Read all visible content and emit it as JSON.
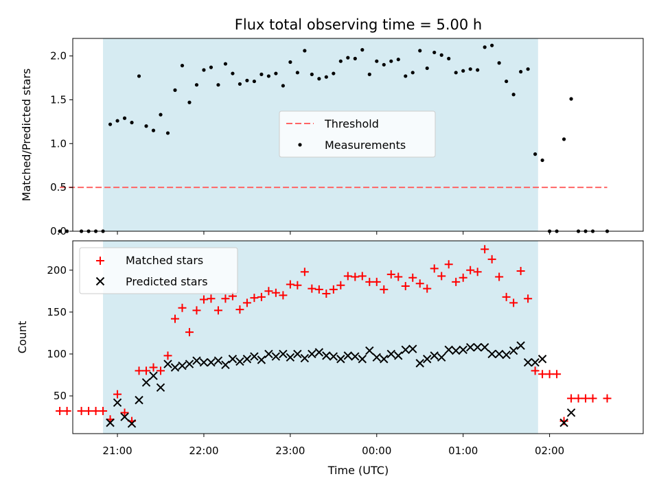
{
  "figure": {
    "title": "Flux total observing time = 5.00 h",
    "background": "#ffffff",
    "shade_color": "#add8e6",
    "x_label": "Time (UTC)",
    "x_tick_labels": [
      "21:00",
      "22:00",
      "23:00",
      "00:00",
      "01:00",
      "02:00"
    ]
  },
  "chart_data": [
    {
      "type": "scatter",
      "panel": "top",
      "ylabel": "Matched/Predicted stars",
      "ylim": [
        0,
        2.2
      ],
      "yticks": [
        0.0,
        0.5,
        1.0,
        1.5,
        2.0
      ],
      "ytick_labels": [
        "0.0",
        "0.5",
        "1.0",
        "1.5",
        "2.0"
      ],
      "xlim": [
        "20:29",
        "03:05"
      ],
      "shaded_span": [
        "20:50",
        "01:52"
      ],
      "legend_position": "center",
      "threshold": {
        "name": "Threshold",
        "value": 0.5,
        "x_range": [
          "20:20",
          "02:40"
        ],
        "color": "#ff6464",
        "style": "dashed"
      },
      "series": [
        {
          "name": "Measurements",
          "color": "#000000",
          "marker": "dot",
          "x": [
            "20:20",
            "20:25",
            "20:35",
            "20:40",
            "20:45",
            "20:50",
            "20:55",
            "21:00",
            "21:05",
            "21:10",
            "21:15",
            "21:20",
            "21:25",
            "21:30",
            "21:35",
            "21:40",
            "21:45",
            "21:50",
            "21:55",
            "22:00",
            "22:05",
            "22:10",
            "22:15",
            "22:20",
            "22:25",
            "22:30",
            "22:35",
            "22:40",
            "22:45",
            "22:50",
            "22:55",
            "23:00",
            "23:05",
            "23:10",
            "23:15",
            "23:20",
            "23:25",
            "23:30",
            "23:35",
            "23:40",
            "23:45",
            "23:50",
            "23:55",
            "00:00",
            "00:05",
            "00:10",
            "00:15",
            "00:20",
            "00:25",
            "00:30",
            "00:35",
            "00:40",
            "00:45",
            "00:50",
            "00:55",
            "01:00",
            "01:05",
            "01:10",
            "01:15",
            "01:20",
            "01:25",
            "01:30",
            "01:35",
            "01:40",
            "01:45",
            "01:50",
            "01:55",
            "02:00",
            "02:05",
            "02:10",
            "02:15",
            "02:20",
            "02:25",
            "02:30",
            "02:40"
          ],
          "y": [
            0.0,
            0.0,
            0.0,
            0.0,
            0.0,
            0.0,
            1.22,
            1.26,
            1.29,
            1.24,
            1.77,
            1.2,
            1.15,
            1.33,
            1.12,
            1.61,
            1.89,
            1.47,
            1.67,
            1.84,
            1.87,
            1.67,
            1.91,
            1.8,
            1.68,
            1.72,
            1.71,
            1.79,
            1.77,
            1.8,
            1.66,
            1.93,
            1.81,
            2.06,
            1.79,
            1.74,
            1.76,
            1.8,
            1.94,
            1.98,
            1.97,
            2.07,
            1.79,
            1.94,
            1.9,
            1.94,
            1.96,
            1.77,
            1.81,
            2.06,
            1.86,
            2.04,
            2.01,
            1.97,
            1.81,
            1.83,
            1.85,
            1.84,
            2.1,
            2.12,
            1.92,
            1.71,
            1.56,
            1.82,
            1.85,
            0.88,
            0.81,
            0.0,
            0.0,
            1.05,
            1.51,
            0.0,
            0.0,
            0.0,
            0.0
          ]
        }
      ]
    },
    {
      "type": "scatter",
      "panel": "bottom",
      "ylabel": "Count",
      "ylim": [
        5,
        235
      ],
      "yticks": [
        50,
        100,
        150,
        200
      ],
      "ytick_labels": [
        "50",
        "100",
        "150",
        "200"
      ],
      "xlim": [
        "20:29",
        "03:05"
      ],
      "shaded_span": [
        "20:50",
        "01:52"
      ],
      "legend_position": "upper left",
      "series": [
        {
          "name": "Matched stars",
          "color": "#ff0000",
          "marker": "plus",
          "x": [
            "20:20",
            "20:25",
            "20:35",
            "20:40",
            "20:45",
            "20:50",
            "20:55",
            "21:00",
            "21:05",
            "21:10",
            "21:15",
            "21:20",
            "21:25",
            "21:30",
            "21:35",
            "21:40",
            "21:45",
            "21:50",
            "21:55",
            "22:00",
            "22:05",
            "22:10",
            "22:15",
            "22:20",
            "22:25",
            "22:30",
            "22:35",
            "22:40",
            "22:45",
            "22:50",
            "22:55",
            "23:00",
            "23:05",
            "23:10",
            "23:15",
            "23:20",
            "23:25",
            "23:30",
            "23:35",
            "23:40",
            "23:45",
            "23:50",
            "23:55",
            "00:00",
            "00:05",
            "00:10",
            "00:15",
            "00:20",
            "00:25",
            "00:30",
            "00:35",
            "00:40",
            "00:45",
            "00:50",
            "00:55",
            "01:00",
            "01:05",
            "01:10",
            "01:15",
            "01:20",
            "01:25",
            "01:30",
            "01:35",
            "01:40",
            "01:45",
            "01:50",
            "01:55",
            "02:00",
            "02:05",
            "02:10",
            "02:15",
            "02:20",
            "02:25",
            "02:30",
            "02:40"
          ],
          "y": [
            32,
            32,
            32,
            32,
            32,
            32,
            22,
            52,
            30,
            20,
            80,
            80,
            84,
            80,
            98,
            142,
            155,
            126,
            152,
            165,
            166,
            152,
            166,
            169,
            153,
            161,
            167,
            168,
            175,
            173,
            170,
            183,
            182,
            198,
            178,
            177,
            172,
            177,
            182,
            193,
            192,
            193,
            186,
            186,
            177,
            195,
            192,
            181,
            191,
            184,
            178,
            202,
            193,
            207,
            186,
            191,
            200,
            198,
            225,
            213,
            192,
            168,
            161,
            199,
            166,
            80,
            76,
            76,
            76,
            20,
            47,
            47,
            47,
            47,
            47
          ]
        },
        {
          "name": "Predicted stars",
          "color": "#000000",
          "marker": "x",
          "x": [
            "20:55",
            "21:00",
            "21:05",
            "21:10",
            "21:15",
            "21:20",
            "21:25",
            "21:30",
            "21:35",
            "21:40",
            "21:45",
            "21:50",
            "21:55",
            "22:00",
            "22:05",
            "22:10",
            "22:15",
            "22:20",
            "22:25",
            "22:30",
            "22:35",
            "22:40",
            "22:45",
            "22:50",
            "22:55",
            "23:00",
            "23:05",
            "23:10",
            "23:15",
            "23:20",
            "23:25",
            "23:30",
            "23:35",
            "23:40",
            "23:45",
            "23:50",
            "23:55",
            "00:00",
            "00:05",
            "00:10",
            "00:15",
            "00:20",
            "00:25",
            "00:30",
            "00:35",
            "00:40",
            "00:45",
            "00:50",
            "00:55",
            "01:00",
            "01:05",
            "01:10",
            "01:15",
            "01:20",
            "01:25",
            "01:30",
            "01:35",
            "01:40",
            "01:45",
            "01:50",
            "01:55",
            "02:10",
            "02:15"
          ],
          "y": [
            18,
            42,
            25,
            17,
            45,
            66,
            74,
            60,
            88,
            84,
            86,
            88,
            92,
            90,
            90,
            92,
            87,
            94,
            91,
            94,
            97,
            93,
            100,
            97,
            100,
            96,
            100,
            95,
            100,
            102,
            98,
            97,
            94,
            98,
            97,
            94,
            104,
            96,
            94,
            100,
            98,
            105,
            106,
            89,
            94,
            98,
            96,
            105,
            104,
            105,
            108,
            108,
            108,
            100,
            100,
            99,
            104,
            110,
            90,
            90,
            94,
            18,
            30
          ]
        }
      ]
    }
  ]
}
